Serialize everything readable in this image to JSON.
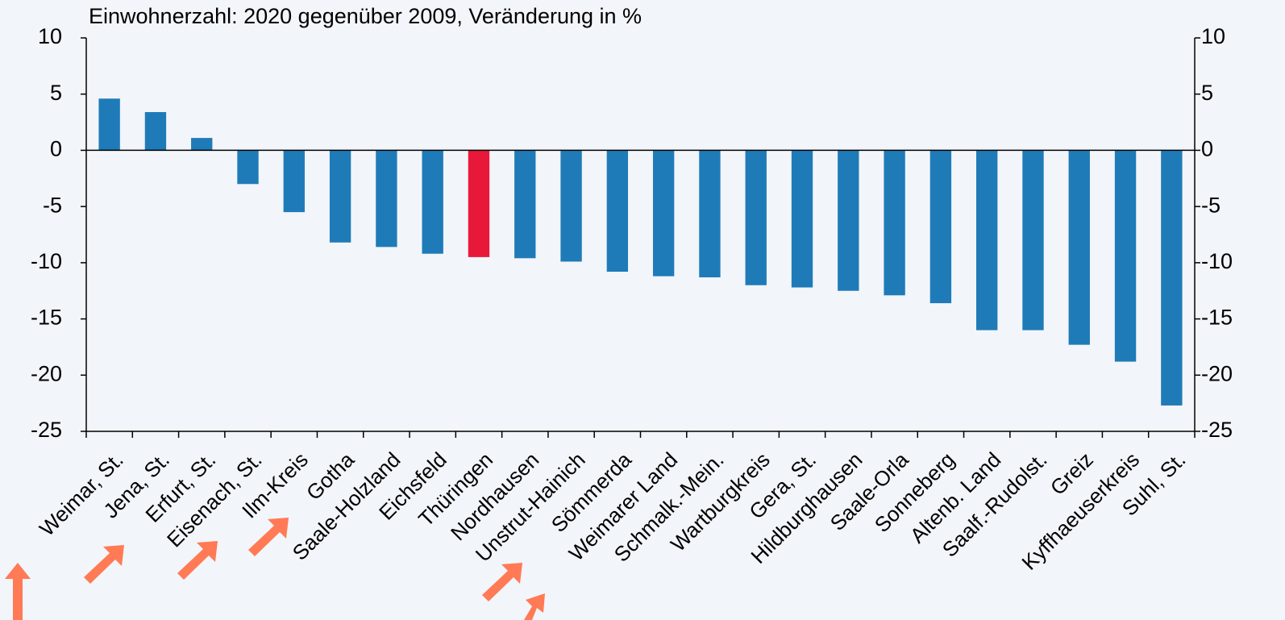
{
  "chart_data": {
    "type": "bar",
    "title": "Einwohnerzahl: 2020 gegenüber 2009, Veränderung in %",
    "categories": [
      "Weimar, St.",
      "Jena, St.",
      "Erfurt, St.",
      "Eisenach, St.",
      "Ilm-Kreis",
      "Gotha",
      "Saale-Holzland",
      "Eichsfeld",
      "Thüringen",
      "Nordhausen",
      "Unstrut-Hainich",
      "Sömmerda",
      "Weimarer Land",
      "Schmalk.-Mein.",
      "Wartburgkreis",
      "Gera, St.",
      "Hildburghausen",
      "Saale-Orla",
      "Sonneberg",
      "Altenb. Land",
      "Saalf.-Rudolst.",
      "Greiz",
      "Kyffhaeuserkreis",
      "Suhl, St."
    ],
    "values": [
      4.6,
      3.4,
      1.1,
      -3.0,
      -5.5,
      -8.2,
      -8.6,
      -9.2,
      -9.5,
      -9.6,
      -9.9,
      -10.8,
      -11.2,
      -11.3,
      -12.0,
      -12.2,
      -12.5,
      -12.9,
      -13.6,
      -16.0,
      -16.0,
      -17.3,
      -18.8,
      -22.7
    ],
    "colors": [
      "#1f7bb8",
      "#1f7bb8",
      "#1f7bb8",
      "#1f7bb8",
      "#1f7bb8",
      "#1f7bb8",
      "#1f7bb8",
      "#1f7bb8",
      "#e8183a",
      "#1f7bb8",
      "#1f7bb8",
      "#1f7bb8",
      "#1f7bb8",
      "#1f7bb8",
      "#1f7bb8",
      "#1f7bb8",
      "#1f7bb8",
      "#1f7bb8",
      "#1f7bb8",
      "#1f7bb8",
      "#1f7bb8",
      "#1f7bb8",
      "#1f7bb8",
      "#1f7bb8"
    ],
    "ylim": [
      -25,
      10
    ],
    "yticks": [
      -25,
      -20,
      -15,
      -10,
      -5,
      0,
      5,
      10
    ],
    "y2lim": [
      -25,
      10
    ],
    "y2ticks": [
      -25,
      -20,
      -15,
      -10,
      -5,
      0,
      5,
      10
    ],
    "grid": false
  }
}
